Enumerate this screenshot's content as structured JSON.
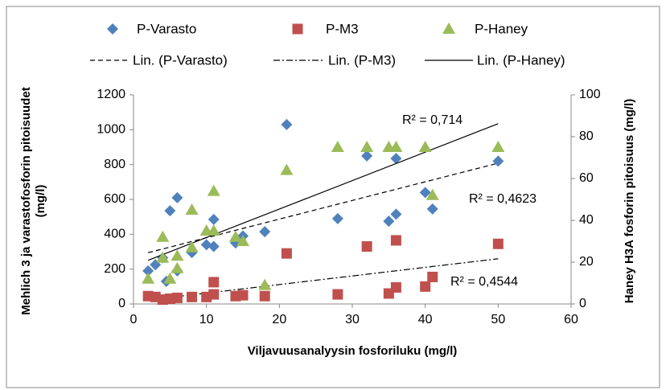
{
  "chart_data": {
    "type": "scatter",
    "x_label": "Viljavuusanalyysin fosforiluku (mg/l)",
    "y_label": "Mehlich 3 ja varastofosforin pitoisuudet (mg/l)",
    "y2_label": "Haney H3A fosforin pitoisuus (mg/l)",
    "xlim": [
      0,
      60
    ],
    "xticks": [
      0,
      10,
      20,
      30,
      40,
      50,
      60
    ],
    "ylim": [
      0,
      1200
    ],
    "yticks": [
      0,
      200,
      400,
      600,
      800,
      1000,
      1200
    ],
    "y2lim": [
      0,
      100
    ],
    "y2ticks": [
      0,
      20,
      40,
      60,
      80,
      100
    ],
    "grid": false,
    "series": [
      {
        "name": "P-Varasto",
        "color": "#4f81bd",
        "marker": "diamond",
        "axis": "y",
        "x": [
          2,
          3,
          4,
          4.5,
          5,
          6,
          6,
          8,
          10,
          11,
          11,
          14,
          15,
          18,
          21,
          28,
          32,
          35,
          36,
          36,
          40,
          41,
          50
        ],
        "values": [
          190,
          225,
          265,
          130,
          535,
          610,
          190,
          295,
          340,
          330,
          485,
          350,
          390,
          415,
          1030,
          490,
          850,
          475,
          515,
          835,
          640,
          545,
          820
        ],
        "trendline": {
          "name": "Lin. (P-Varasto)",
          "style": "dashed",
          "r2_label": "R² = 0,4623"
        }
      },
      {
        "name": "P-M3",
        "color": "#c0504d",
        "marker": "square",
        "axis": "y",
        "x": [
          2,
          3,
          4,
          5,
          6,
          8,
          10,
          11,
          11,
          14,
          15,
          18,
          21,
          28,
          32,
          35,
          36,
          36,
          40,
          41,
          50
        ],
        "values": [
          45,
          40,
          25,
          30,
          35,
          40,
          40,
          55,
          125,
          45,
          50,
          45,
          290,
          55,
          330,
          60,
          95,
          365,
          100,
          155,
          345
        ],
        "trendline": {
          "name": "Lin. (P-M3)",
          "style": "dashdot",
          "r2_label": "R² = 0,4544"
        }
      },
      {
        "name": "P-Haney",
        "color": "#9bbb59",
        "marker": "triangle",
        "axis": "y2",
        "x": [
          2,
          4,
          4,
          5,
          6,
          6,
          8,
          8,
          10,
          11,
          11,
          14,
          15,
          18,
          21,
          28,
          32,
          35,
          36,
          40,
          41,
          50
        ],
        "values": [
          12,
          32,
          22,
          12,
          23,
          17,
          45,
          27,
          35,
          35,
          54,
          32,
          30,
          9,
          64,
          75,
          75,
          75,
          75,
          75,
          52,
          75
        ],
        "trendline": {
          "name": "Lin. (P-Haney)",
          "style": "solid",
          "r2_label": "R² = 0,714"
        }
      }
    ]
  }
}
